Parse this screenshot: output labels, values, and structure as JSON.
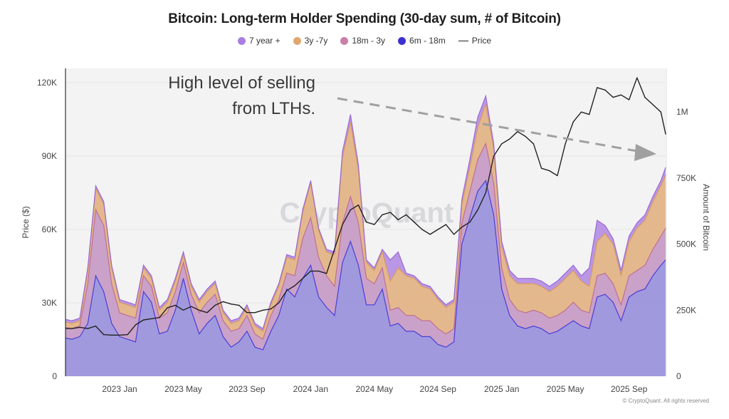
{
  "chart_data": {
    "type": "area",
    "stacked": true,
    "title": "Bitcoin: Long-term Holder Spending (30-day sum, # of Bitcoin)",
    "legend": [
      {
        "name": "7 year +",
        "color": "#a97ee0",
        "kind": "dot"
      },
      {
        "name": "3y -7y",
        "color": "#e0a870",
        "kind": "dot"
      },
      {
        "name": "18m - 3y",
        "color": "#c97fa7",
        "kind": "dot"
      },
      {
        "name": "6m - 18m",
        "color": "#3b30d0",
        "kind": "dot"
      },
      {
        "name": "Price",
        "color": "#222222",
        "kind": "line"
      }
    ],
    "legend_position": "top-center",
    "ylabel_left": "Price ($)",
    "ylabel_right": "Amount of Bitcoin",
    "y_left_ticks": [
      "0",
      "30K",
      "60K",
      "90K",
      "120K"
    ],
    "y_left_range": [
      0,
      122000
    ],
    "y_right_ticks": [
      "0",
      "250K",
      "500K",
      "750K",
      "1M"
    ],
    "y_right_range": [
      0,
      1130000
    ],
    "x_ticks": [
      "2023 Jan",
      "2023 May",
      "2023 Sep",
      "2024 Jan",
      "2024 May",
      "2024 Sep",
      "2025 Jan",
      "2025 May",
      "2025 Sep"
    ],
    "x_range_months": [
      -3.4,
      34.3
    ],
    "x_tick_months": [
      0,
      4,
      8,
      12,
      16,
      20,
      24,
      28,
      32
    ],
    "grid": true,
    "annotation": {
      "lines": [
        "High level of selling",
        "from LTHs."
      ],
      "arrow": "dashed downward trend arrow"
    },
    "watermark": "CryptoQuant",
    "copyright": "© CryptoQuant. All rights reserved",
    "x_months": [
      -3.4,
      -3,
      -2.5,
      -2,
      -1.5,
      -1,
      -0.5,
      0,
      0.5,
      1,
      1.5,
      2,
      2.5,
      3,
      3.5,
      4,
      4.5,
      5,
      5.5,
      6,
      6.5,
      7,
      7.5,
      8,
      8.5,
      9,
      9.5,
      10,
      10.5,
      11,
      11.5,
      12,
      12.5,
      13,
      13.5,
      14,
      14.5,
      15,
      15.5,
      16,
      16.5,
      17,
      17.5,
      18,
      18.5,
      19,
      19.5,
      20,
      20.5,
      21,
      21.5,
      22,
      22.5,
      23,
      23.5,
      24,
      24.5,
      25,
      25.5,
      26,
      26.5,
      27,
      27.5,
      28,
      28.5,
      29,
      29.5,
      30,
      30.5,
      31,
      31.5,
      32,
      32.5,
      33,
      33.5,
      34,
      34.3
    ],
    "series": [
      {
        "name": "6m - 18m",
        "values": [
          145,
          140,
          150,
          200,
          380,
          320,
          200,
          150,
          140,
          130,
          320,
          280,
          160,
          170,
          250,
          370,
          250,
          160,
          200,
          230,
          150,
          110,
          130,
          170,
          110,
          100,
          170,
          230,
          330,
          300,
          370,
          420,
          300,
          260,
          230,
          430,
          510,
          420,
          270,
          270,
          330,
          190,
          200,
          170,
          170,
          150,
          150,
          120,
          110,
          130,
          500,
          600,
          700,
          740,
          610,
          330,
          230,
          190,
          180,
          190,
          180,
          160,
          170,
          190,
          210,
          190,
          180,
          300,
          310,
          280,
          210,
          300,
          320,
          330,
          380,
          420,
          440
        ]
      },
      {
        "name": "18m - 3y",
        "values": [
          40,
          40,
          40,
          150,
          250,
          250,
          150,
          90,
          90,
          90,
          60,
          60,
          60,
          70,
          70,
          60,
          60,
          80,
          80,
          80,
          60,
          60,
          50,
          60,
          50,
          40,
          60,
          60,
          60,
          80,
          150,
          180,
          150,
          120,
          110,
          150,
          170,
          160,
          100,
          80,
          80,
          60,
          60,
          60,
          60,
          60,
          60,
          60,
          50,
          50,
          80,
          100,
          120,
          140,
          120,
          80,
          60,
          60,
          60,
          60,
          60,
          60,
          60,
          60,
          70,
          60,
          60,
          80,
          80,
          70,
          60,
          80,
          80,
          90,
          100,
          110,
          120
        ]
      },
      {
        "name": "3y - 7y",
        "values": [
          20,
          20,
          20,
          50,
          80,
          80,
          60,
          40,
          40,
          40,
          30,
          30,
          30,
          40,
          40,
          30,
          30,
          40,
          40,
          40,
          30,
          30,
          30,
          30,
          30,
          30,
          40,
          50,
          60,
          60,
          100,
          130,
          100,
          90,
          120,
          250,
          280,
          200,
          60,
          50,
          60,
          110,
          150,
          150,
          140,
          130,
          120,
          110,
          100,
          100,
          70,
          90,
          120,
          150,
          130,
          80,
          90,
          100,
          110,
          100,
          100,
          100,
          110,
          120,
          120,
          110,
          100,
          130,
          150,
          150,
          110,
          130,
          160,
          170,
          180,
          190,
          200
        ]
      },
      {
        "name": "7 year +",
        "values": [
          10,
          10,
          10,
          10,
          10,
          10,
          10,
          10,
          10,
          10,
          10,
          10,
          10,
          10,
          10,
          10,
          10,
          10,
          10,
          10,
          10,
          10,
          10,
          10,
          10,
          10,
          10,
          10,
          10,
          10,
          10,
          10,
          10,
          10,
          10,
          20,
          30,
          20,
          10,
          10,
          10,
          80,
          60,
          10,
          10,
          10,
          10,
          10,
          10,
          10,
          20,
          30,
          40,
          30,
          20,
          20,
          20,
          20,
          20,
          20,
          20,
          20,
          20,
          20,
          20,
          20,
          70,
          80,
          30,
          20,
          20,
          20,
          20,
          20,
          20,
          20,
          30
        ]
      }
    ],
    "series_units": "thousand BTC",
    "price": {
      "name": "Price",
      "x_months": [
        -3.4,
        -3,
        -2.5,
        -2,
        -1.5,
        -1,
        -0.5,
        0,
        0.5,
        1,
        1.5,
        2,
        2.5,
        3,
        3.5,
        4,
        4.5,
        5,
        5.5,
        6,
        6.5,
        7,
        7.5,
        8,
        8.5,
        9,
        9.5,
        10,
        10.5,
        11,
        11.5,
        12,
        12.5,
        13,
        13.5,
        14,
        14.5,
        15,
        15.5,
        16,
        16.5,
        17,
        17.5,
        18,
        18.5,
        19,
        19.5,
        20,
        20.5,
        21,
        21.5,
        22,
        22.5,
        23,
        23.5,
        24,
        24.5,
        25,
        25.5,
        26,
        26.5,
        27,
        27.5,
        28,
        28.5,
        29,
        29.5,
        30,
        30.5,
        31,
        31.5,
        32,
        32.5,
        33,
        33.5,
        34,
        34.3
      ],
      "values": [
        19.5,
        19.5,
        20,
        19.5,
        20.5,
        17,
        16.8,
        16.8,
        17,
        21,
        23,
        23.5,
        24,
        28,
        29,
        27,
        28.5,
        27,
        26,
        29,
        30.5,
        29.5,
        29,
        26,
        26,
        27,
        27.5,
        30,
        35,
        37,
        40,
        43,
        43,
        42,
        52,
        62,
        68,
        70,
        63,
        62,
        66,
        67,
        64,
        66,
        63,
        60,
        58,
        60,
        62,
        58,
        61,
        63,
        68,
        75,
        90,
        95,
        97,
        100,
        98,
        95,
        85,
        84,
        82,
        95,
        104,
        108,
        107,
        118,
        117,
        114,
        115,
        113,
        122,
        114,
        111,
        108,
        99
      ]
    },
    "price_units": "thousand USD"
  }
}
